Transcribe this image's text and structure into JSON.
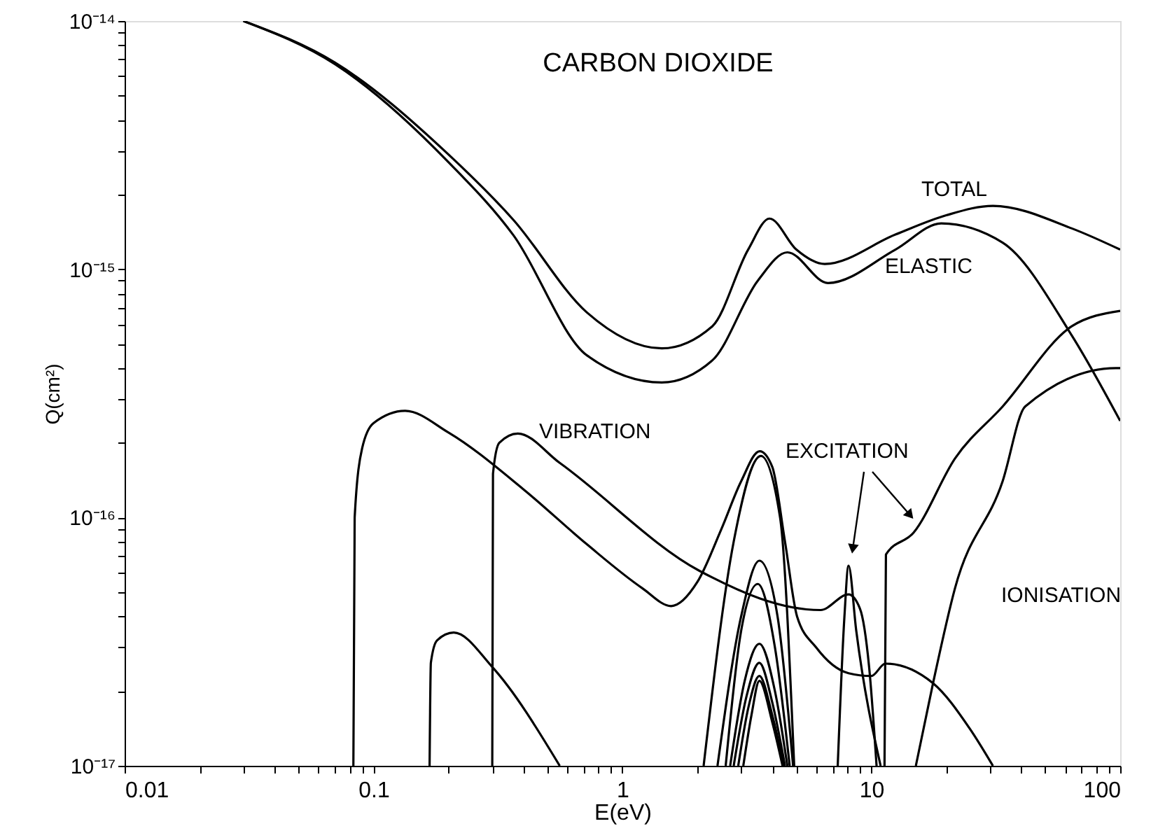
{
  "chart_data": {
    "type": "line",
    "title": "CARBON DIOXIDE",
    "xlabel": "E(eV)",
    "ylabel": "Q(cm²)",
    "log": "xy",
    "grid": false,
    "marker": "none",
    "line_style": "solid",
    "xlim": [
      0.01,
      100
    ],
    "ylim": [
      1e-17,
      1e-14
    ],
    "xticks": [
      0.01,
      {
        "value": 0.02,
        "label": null
      },
      {
        "value": 0.03,
        "label": null
      },
      {
        "value": 0.04,
        "label": null
      },
      {
        "value": 0.05,
        "label": null
      },
      {
        "value": 0.06,
        "label": null
      },
      {
        "value": 0.07,
        "label": null
      },
      {
        "value": 0.08,
        "label": null
      },
      {
        "value": 0.09,
        "label": null
      },
      0.1,
      {
        "value": 0.2,
        "label": null
      },
      {
        "value": 0.3,
        "label": null
      },
      {
        "value": 0.4,
        "label": null
      },
      {
        "value": 0.5,
        "label": null
      },
      {
        "value": 0.6,
        "label": null
      },
      {
        "value": 0.7,
        "label": null
      },
      {
        "value": 0.8,
        "label": null
      },
      {
        "value": 0.9,
        "label": null
      },
      1,
      {
        "value": 2,
        "label": null
      },
      {
        "value": 3,
        "label": null
      },
      {
        "value": 4,
        "label": null
      },
      {
        "value": 5,
        "label": null
      },
      {
        "value": 6,
        "label": null
      },
      {
        "value": 7,
        "label": null
      },
      {
        "value": 8,
        "label": null
      },
      {
        "value": 9,
        "label": null
      },
      10,
      {
        "value": 20,
        "label": null
      },
      {
        "value": 30,
        "label": null
      },
      {
        "value": 40,
        "label": null
      },
      {
        "value": 50,
        "label": null
      },
      {
        "value": 60,
        "label": null
      },
      {
        "value": 70,
        "label": null
      },
      {
        "value": 80,
        "label": null
      },
      {
        "value": 90,
        "label": null
      },
      100
    ],
    "yticks": [
      {
        "value": 1e-17,
        "label": "10⁻¹⁷"
      },
      {
        "value": 2e-17,
        "label": null
      },
      {
        "value": 3e-17,
        "label": null
      },
      {
        "value": 4e-17,
        "label": null
      },
      {
        "value": 5e-17,
        "label": null
      },
      {
        "value": 6e-17,
        "label": null
      },
      {
        "value": 7e-17,
        "label": null
      },
      {
        "value": 8e-17,
        "label": null
      },
      {
        "value": 9e-17,
        "label": null
      },
      {
        "value": 1e-16,
        "label": "10⁻¹⁶"
      },
      {
        "value": 2e-16,
        "label": null
      },
      {
        "value": 3e-16,
        "label": null
      },
      {
        "value": 4e-16,
        "label": null
      },
      {
        "value": 5e-16,
        "label": null
      },
      {
        "value": 6e-16,
        "label": null
      },
      {
        "value": 7e-16,
        "label": null
      },
      {
        "value": 8e-16,
        "label": null
      },
      {
        "value": 9e-16,
        "label": null
      },
      {
        "value": 1e-15,
        "label": "10⁻¹⁵"
      },
      {
        "value": 2e-15,
        "label": null
      },
      {
        "value": 3e-15,
        "label": null
      },
      {
        "value": 4e-15,
        "label": null
      },
      {
        "value": 5e-15,
        "label": null
      },
      {
        "value": 6e-15,
        "label": null
      },
      {
        "value": 7e-15,
        "label": null
      },
      {
        "value": 8e-15,
        "label": null
      },
      {
        "value": 9e-15,
        "label": null
      },
      {
        "value": 1e-14,
        "label": "10⁻¹⁴"
      }
    ],
    "series": [
      {
        "color": "#000000",
        "x": [
          0.03,
          0.07,
          0.2,
          0.365,
          0.72,
          1.44,
          2.3,
          3.2,
          3.9,
          5.0,
          6.5,
          12.5,
          20,
          30.8,
          64,
          100
        ],
        "values": [
          1e-14,
          6.8e-15,
          2.9e-15,
          1.58e-15,
          6.7e-16,
          4.8e-16,
          5.9e-16,
          1.2e-15,
          1.6e-15,
          1.2e-15,
          1.05e-15,
          1.38e-15,
          1.65e-15,
          1.8e-15,
          1.46e-15,
          1.2e-15
        ]
      },
      {
        "color": "#000000",
        "x": [
          0.03,
          0.07,
          0.2,
          0.365,
          0.72,
          1.44,
          2.3,
          3.5,
          4.6,
          6.7,
          12.5,
          19.1,
          33.7,
          64,
          100
        ],
        "values": [
          1e-14,
          6.7e-15,
          2.7e-15,
          1.37e-15,
          4.5e-16,
          3.5e-16,
          4.3e-16,
          9e-16,
          1.17e-15,
          8.8e-16,
          1.2e-15,
          1.53e-15,
          1.28e-15,
          5.4e-16,
          2.45e-16
        ]
      },
      {
        "color": "#000000",
        "x": [
          0.083,
          0.084,
          0.09,
          0.1,
          0.134,
          0.2,
          0.4,
          0.72,
          1.2,
          1.57,
          2.0,
          2.5,
          3.0,
          3.56,
          4.0,
          4.5,
          5.03,
          6.0,
          8.1,
          10,
          11.4,
          17.7,
          25,
          30.8
        ],
        "values": [
          1e-17,
          1e-16,
          1.9e-16,
          2.4e-16,
          2.69e-16,
          2.2e-16,
          1.3e-16,
          7.8e-17,
          5.2e-17,
          4.4e-17,
          5.5e-17,
          9e-17,
          1.4e-16,
          1.85e-16,
          1.6e-16,
          8e-17,
          4e-17,
          3e-17,
          2.36e-17,
          2.3e-17,
          2.58e-17,
          2.15e-17,
          1.4e-17,
          1e-17
        ]
      },
      {
        "color": "#000000",
        "x": [
          0.3,
          0.302,
          0.32,
          0.38,
          0.56,
          2.04,
          6.25,
          8.1,
          9.0,
          9.8,
          10.5
        ],
        "values": [
          1e-17,
          1.5e-16,
          2e-16,
          2.18e-16,
          1.66e-16,
          6.1e-17,
          4.24e-17,
          4.9e-17,
          4.3e-17,
          2.5e-17,
          1e-17
        ]
      },
      {
        "color": "#000000",
        "x": [
          0.168,
          0.17,
          0.18,
          0.21,
          0.3,
          0.56
        ],
        "values": [
          1e-17,
          2.6e-17,
          3.2e-17,
          3.44e-17,
          2.5e-17,
          1e-17
        ]
      },
      {
        "color": "#000000",
        "x": [
          2.12,
          2.8,
          3.6,
          4.3,
          4.9
        ],
        "values": [
          1e-17,
          8e-17,
          1.77e-16,
          1e-16,
          1e-17
        ]
      },
      {
        "color": "#000000",
        "x": [
          2.41,
          3.0,
          3.55,
          4.2,
          4.85
        ],
        "values": [
          1e-17,
          4e-17,
          6.7e-17,
          4e-17,
          1e-17
        ]
      },
      {
        "color": "#000000",
        "x": [
          2.6,
          3.0,
          3.5,
          4.1,
          4.7
        ],
        "values": [
          1e-17,
          3.5e-17,
          5.4e-17,
          3e-17,
          1e-17
        ]
      },
      {
        "color": "#000000",
        "x": [
          2.71,
          3.1,
          3.55,
          4.1,
          4.6
        ],
        "values": [
          1e-17,
          2.2e-17,
          3.1e-17,
          2e-17,
          1e-17
        ]
      },
      {
        "color": "#000000",
        "x": [
          2.8,
          3.15,
          3.55,
          4.0,
          4.5
        ],
        "values": [
          1e-17,
          1.9e-17,
          2.6e-17,
          1.8e-17,
          1e-17
        ]
      },
      {
        "color": "#000000",
        "x": [
          2.92,
          3.2,
          3.55,
          4.0,
          4.45
        ],
        "values": [
          1e-17,
          1.7e-17,
          2.3e-17,
          1.6e-17,
          1e-17
        ]
      },
      {
        "color": "#000000",
        "x": [
          3.06,
          3.3,
          3.55,
          4.0,
          4.4
        ],
        "values": [
          1e-17,
          1.6e-17,
          2.2e-17,
          1.5e-17,
          1e-17
        ]
      },
      {
        "color": "#000000",
        "x": [
          7.33,
          7.8,
          8.1,
          8.7,
          10.9
        ],
        "values": [
          1e-17,
          4e-17,
          6.4e-17,
          3.5e-17,
          1e-17
        ]
      },
      {
        "color": "#000000",
        "x": [
          11.3,
          11.45,
          14.8,
          21.7,
          33.7,
          64,
          100
        ],
        "values": [
          1e-17,
          7.1e-17,
          8.7e-17,
          1.73e-16,
          2.8e-16,
          5.9e-16,
          6.8e-16
        ]
      },
      {
        "color": "#000000",
        "x": [
          15.1,
          17.7,
          21.7,
          33.7,
          41.5,
          96,
          100
        ],
        "values": [
          1e-17,
          2.15e-17,
          5.2e-17,
          1.4e-16,
          2.8e-16,
          4e-16,
          4e-16
        ]
      }
    ],
    "annotations": [
      "TOTAL",
      "ELASTIC",
      "VIBRATION",
      "EXCITATION",
      "IONISATION"
    ]
  }
}
